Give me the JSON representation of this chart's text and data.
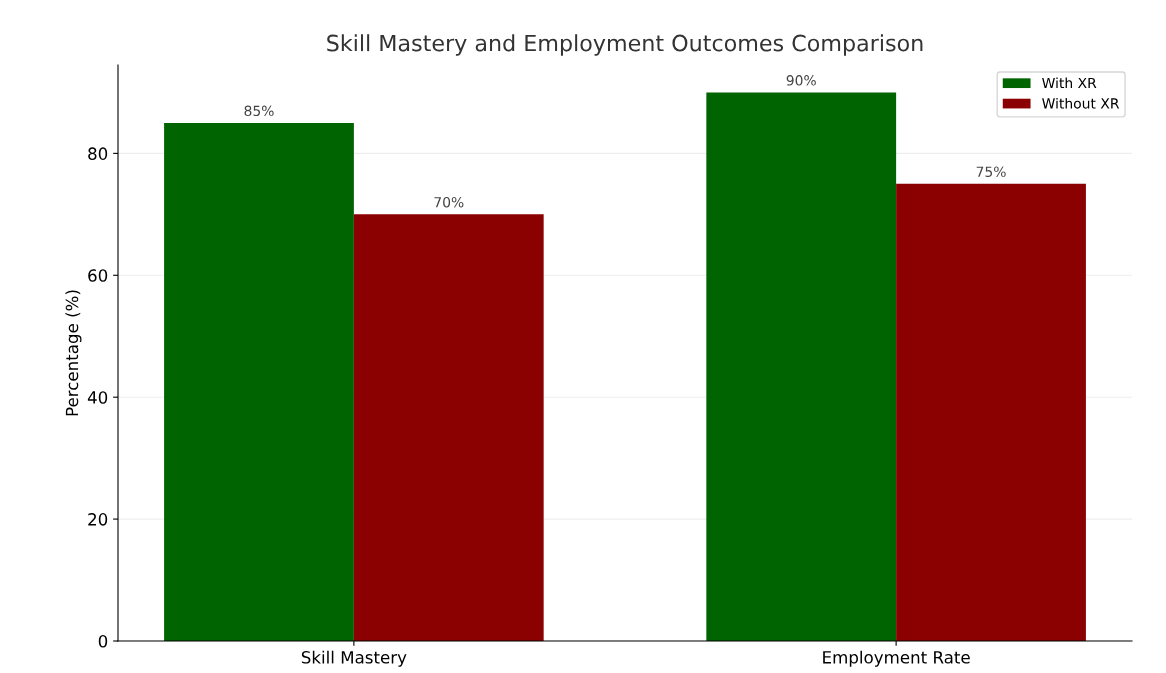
{
  "chart_data": {
    "type": "bar",
    "title": "Skill Mastery and Employment Outcomes Comparison",
    "ylabel": "Percentage (%)",
    "categories": [
      "Skill Mastery",
      "Employment Rate"
    ],
    "series": [
      {
        "name": "With XR",
        "color": "#006400",
        "values": [
          85,
          90
        ],
        "value_labels": [
          "85%",
          "90%"
        ]
      },
      {
        "name": "Without XR",
        "color": "#8b0000",
        "values": [
          70,
          75
        ],
        "value_labels": [
          "70%",
          "75%"
        ]
      }
    ],
    "ylim": [
      0,
      94.5
    ],
    "yticks": [
      0,
      20,
      40,
      60,
      80
    ],
    "grid": "y",
    "legend": "top right"
  }
}
